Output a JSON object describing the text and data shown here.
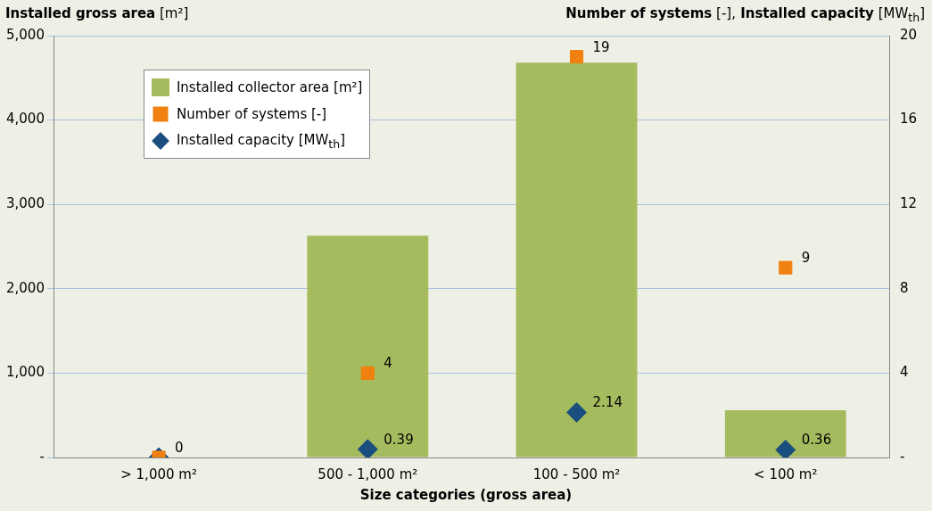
{
  "chart_data": {
    "type": "bar",
    "xlabel": "Size categories (gross area)",
    "ylabel": "Installed gross area [m²]",
    "y2label": "Number of systems [-], Installed capacity [MW$_{th}$]",
    "categories": [
      "> 1,000 m²",
      "500 - 1,000 m²",
      "100 - 500 m²",
      "< 100 m²"
    ],
    "series": [
      {
        "name": "Installed collector area [m²]",
        "color": "#a5bc5e",
        "values": [
          0,
          2630,
          4680,
          560
        ]
      },
      {
        "name": "Number of systems [-]",
        "type": "scatter",
        "axis": "y2",
        "marker": "square",
        "color": "#f0800f",
        "x": [
          "> 1,000 m²",
          "500 - 1,000 m²",
          "100 - 500 m²",
          "< 100 m²"
        ],
        "values": [
          0,
          4,
          19,
          9
        ],
        "value_labels": [
          "0",
          "4",
          "19",
          "9"
        ]
      },
      {
        "name": "Installed capacity [MW$_{th}$]",
        "type": "scatter",
        "axis": "y2",
        "marker": "diamond",
        "color": "#1a4e7e",
        "x": [
          "> 1,000 m²",
          "500 - 1,000 m²",
          "100 - 500 m²",
          "< 100 m²"
        ],
        "values": [
          0,
          0.39,
          2.14,
          0.36
        ],
        "value_labels": [
          null,
          "0.39",
          "2.14",
          "0.36"
        ]
      }
    ],
    "ylim": [
      0,
      5000
    ],
    "yticks": [
      {
        "value": 0,
        "label": "-"
      },
      {
        "value": 1000,
        "label": "1,000"
      },
      {
        "value": 2000,
        "label": "2,000"
      },
      {
        "value": 3000,
        "label": "3,000"
      },
      {
        "value": 4000,
        "label": "4,000"
      },
      {
        "value": 5000,
        "label": "5,000"
      }
    ],
    "y2lim": [
      0,
      20
    ],
    "y2ticks": [
      {
        "value": 0,
        "label": "-"
      },
      4,
      8,
      12,
      16,
      20
    ],
    "grid": "y",
    "legend": "top left"
  }
}
